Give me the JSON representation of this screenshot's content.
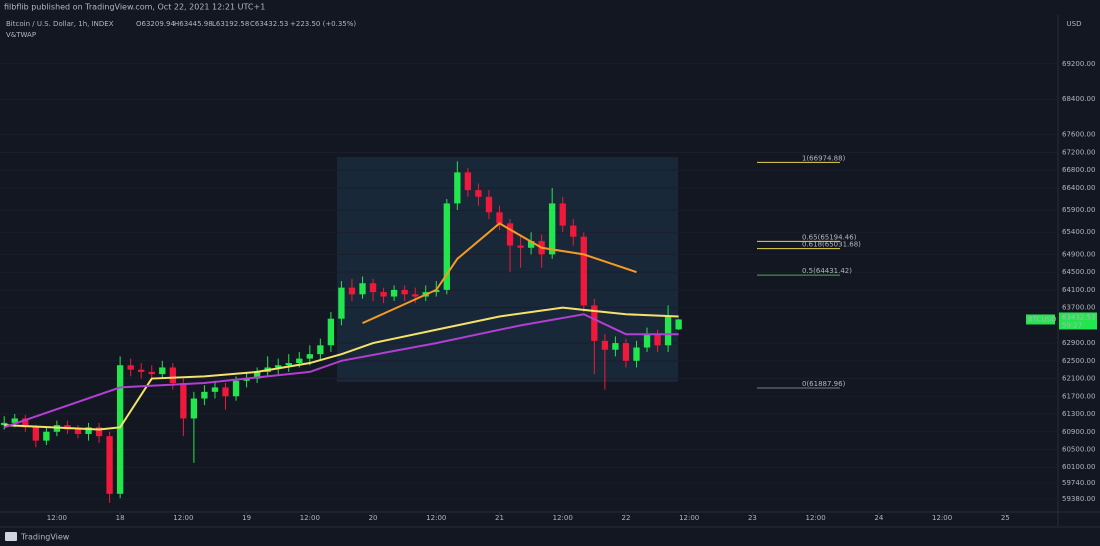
{
  "header": {
    "published": "filbflib published on TradingView.com, Oct 22, 2021 12:21 UTC+1",
    "symbol_line": "Bitcoin / U.S. Dollar, 1h, INDEX",
    "ohlc": [
      "O63209.94",
      "H63445.98",
      "L63192.58",
      "C63432.53",
      "+223.50 (+0.35%)"
    ],
    "indicator": "V&TWAP"
  },
  "footer": {
    "brand": "TradingView"
  },
  "chart_data": {
    "type": "candlestick",
    "y_axis_label": "USD",
    "x": [
      2,
      4,
      6,
      8,
      10,
      12,
      14,
      16,
      18,
      20,
      22,
      24,
      26,
      28,
      30,
      32,
      34,
      36,
      38,
      40,
      42,
      44,
      46,
      48,
      50,
      52,
      54,
      56,
      58,
      60,
      62,
      64,
      66,
      68,
      70,
      72,
      74,
      76,
      78,
      80,
      82,
      84,
      86,
      88,
      90,
      92,
      94,
      96,
      98,
      100,
      102,
      104,
      106,
      108,
      110,
      112,
      114,
      116,
      118,
      120,
      122,
      124,
      126,
      128,
      130
    ],
    "open": [
      61050,
      61100,
      61200,
      61000,
      60700,
      60900,
      61050,
      60950,
      60850,
      61000,
      60800,
      59500,
      62400,
      62300,
      62250,
      62200,
      62350,
      62000,
      61200,
      61650,
      61800,
      61900,
      61700,
      62050,
      62100,
      62250,
      62350,
      62400,
      62450,
      62550,
      62650,
      62850,
      63450,
      64150,
      64000,
      64250,
      64050,
      63950,
      64100,
      64000,
      63950,
      64050,
      64100,
      66050,
      66750,
      66350,
      66200,
      65850,
      65600,
      65100,
      65050,
      65200,
      64900,
      66050,
      65550,
      65300,
      63750,
      62950,
      62750,
      62900,
      62500,
      62800,
      63100,
      62850,
      63209.94
    ],
    "high": [
      61250,
      61300,
      61280,
      61050,
      61000,
      61150,
      61150,
      61050,
      61100,
      61100,
      60900,
      62600,
      62550,
      62450,
      62400,
      62500,
      62450,
      62100,
      61800,
      61950,
      62050,
      62000,
      62150,
      62250,
      62350,
      62600,
      62550,
      62650,
      62700,
      62850,
      63000,
      63600,
      64300,
      64350,
      64400,
      64350,
      64150,
      64200,
      64200,
      64150,
      64200,
      64300,
      66150,
      67000,
      66850,
      66500,
      66350,
      66000,
      65700,
      65300,
      65400,
      65350,
      66400,
      66200,
      65700,
      65400,
      63900,
      63100,
      63050,
      63000,
      62950,
      63250,
      63200,
      63750,
      63445.98
    ],
    "low": [
      60950,
      61000,
      60900,
      60550,
      60600,
      60800,
      60850,
      60750,
      60700,
      60650,
      59300,
      59400,
      62150,
      62100,
      62050,
      62100,
      61850,
      60800,
      60200,
      61500,
      61650,
      61400,
      61600,
      61900,
      62000,
      62150,
      62200,
      62250,
      62350,
      62400,
      62500,
      62700,
      63300,
      63850,
      63900,
      63850,
      63800,
      63850,
      63850,
      63800,
      63850,
      63950,
      64000,
      65900,
      66200,
      66000,
      65700,
      65450,
      64500,
      64600,
      64900,
      64600,
      64800,
      65400,
      65100,
      63600,
      62200,
      61850,
      62600,
      62350,
      62350,
      62700,
      62700,
      62700,
      63192.58
    ],
    "close": [
      61100,
      61200,
      61000,
      60700,
      60900,
      61050,
      60950,
      60850,
      61000,
      60800,
      59500,
      62400,
      62300,
      62250,
      62200,
      62350,
      62000,
      61200,
      61650,
      61800,
      61900,
      61700,
      62050,
      62100,
      62250,
      62350,
      62400,
      62450,
      62550,
      62650,
      62850,
      63450,
      64150,
      64000,
      64250,
      64050,
      63950,
      64100,
      64000,
      63950,
      64050,
      64100,
      66050,
      66750,
      66350,
      66200,
      65850,
      65600,
      65100,
      65050,
      65200,
      64900,
      66050,
      65550,
      65300,
      63750,
      62950,
      62750,
      62900,
      62500,
      62800,
      63100,
      62850,
      63500,
      63432.53
    ],
    "up_color": "#22e64d",
    "down_color": "#f0193c",
    "lines": [
      {
        "color": "#f5e26b",
        "x": [
          2,
          20,
          24,
          30,
          40,
          50,
          60,
          66,
          72,
          84,
          96,
          108,
          112,
          120,
          130
        ],
        "values": [
          61050,
          60950,
          61000,
          62100,
          62150,
          62250,
          62450,
          62650,
          62900,
          63200,
          63500,
          63700,
          63650,
          63550,
          63500
        ]
      },
      {
        "color": "#b13fd1",
        "x": [
          2,
          24,
          40,
          60,
          66,
          84,
          100,
          112,
          120,
          130
        ],
        "values": [
          61000,
          61900,
          62000,
          62250,
          62500,
          62900,
          63300,
          63550,
          63100,
          63100
        ]
      },
      {
        "color": "#f59a23",
        "x": [
          70,
          84,
          88,
          96,
          104,
          112,
          122
        ],
        "values": [
          63350,
          64100,
          64800,
          65600,
          65050,
          64900,
          64500
        ]
      }
    ],
    "fib_levels": [
      {
        "label": "1(66974.88)",
        "price": 66974.88,
        "color": "#e8d44d"
      },
      {
        "label": "0.65(65194.46)",
        "price": 65194.46,
        "color": "#e8d44d"
      },
      {
        "label": "0.618(65031.68)",
        "price": 65031.68,
        "color": "#e8d44d"
      },
      {
        "label": "0.5(64431.42)",
        "price": 64431.42,
        "color": "#4caf50"
      },
      {
        "label": "0(61887.96)",
        "price": 61887.96,
        "color": "#787b86"
      }
    ],
    "badge": {
      "symbol": "BTCUSD",
      "price": "63432.53",
      "timer": "59:27"
    },
    "xlim": [
      1.2,
      202
    ],
    "ylim": [
      59090,
      70300
    ],
    "xticks": [
      {
        "value": 12,
        "label": "12:00"
      },
      {
        "value": 24,
        "label": "18"
      },
      {
        "value": 36,
        "label": "12:00"
      },
      {
        "value": 48,
        "label": "19"
      },
      {
        "value": 60,
        "label": "12:00"
      },
      {
        "value": 72,
        "label": "20"
      },
      {
        "value": 84,
        "label": "12:00"
      },
      {
        "value": 96,
        "label": "21"
      },
      {
        "value": 108,
        "label": "12:00"
      },
      {
        "value": 120,
        "label": "22"
      },
      {
        "value": 132,
        "label": "12:00"
      },
      {
        "value": 144,
        "label": "23"
      },
      {
        "value": 156,
        "label": "12:00"
      },
      {
        "value": 168,
        "label": "24"
      },
      {
        "value": 180,
        "label": "12:00"
      },
      {
        "value": 192,
        "label": "25"
      }
    ],
    "yticks": [
      {
        "value": 69200,
        "label": "69200.00"
      },
      {
        "value": 68400,
        "label": "68400.00"
      },
      {
        "value": 67600,
        "label": "67600.00"
      },
      {
        "value": 67200,
        "label": "67200.00"
      },
      {
        "value": 66800,
        "label": "66800.00"
      },
      {
        "value": 66400,
        "label": "66400.00"
      },
      {
        "value": 65900,
        "label": "65900.00"
      },
      {
        "value": 65400,
        "label": "65400.00"
      },
      {
        "value": 64900,
        "label": "64900.00"
      },
      {
        "value": 64500,
        "label": "64500.00"
      },
      {
        "value": 64100,
        "label": "64100.00"
      },
      {
        "value": 63700,
        "label": "63700.00"
      },
      {
        "value": 62900,
        "label": "62900.00"
      },
      {
        "value": 62500,
        "label": "62500.00"
      },
      {
        "value": 62100,
        "label": "62100.00"
      },
      {
        "value": 61700,
        "label": "61700.00"
      },
      {
        "value": 61300,
        "label": "61300.00"
      },
      {
        "value": 60900,
        "label": "60900.00"
      },
      {
        "value": 60500,
        "label": "60500.00"
      },
      {
        "value": 60100,
        "label": "60100.00"
      },
      {
        "value": 59740,
        "label": "59740.00"
      },
      {
        "value": 59380,
        "label": "59380.00"
      }
    ],
    "grid": true
  }
}
